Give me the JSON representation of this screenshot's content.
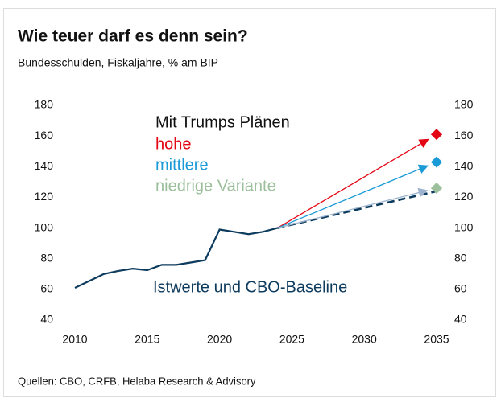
{
  "chart_data": {
    "type": "line",
    "title": "Wie teuer darf es denn sein?",
    "subtitle": "Bundesschulden, Fiskaljahre, % am BIP",
    "annotation": "Mit Trumps Plänen",
    "source": "Quellen: CBO, CRFB, Helaba Research & Advisory",
    "xlim": [
      2010,
      2035
    ],
    "xticks": [
      2010,
      2015,
      2020,
      2025,
      2030,
      2035
    ],
    "ylim": [
      40,
      180
    ],
    "yticks": [
      40,
      60,
      80,
      100,
      120,
      140,
      160,
      180
    ],
    "y2lim": [
      40,
      180
    ],
    "y2ticks": [
      40,
      60,
      80,
      100,
      120,
      140,
      160,
      180
    ],
    "series": [
      {
        "name": "Istwerte und CBO-Baseline",
        "color": "#0d3b5e",
        "x": [
          2010,
          2011,
          2012,
          2013,
          2014,
          2015,
          2016,
          2017,
          2018,
          2019,
          2020,
          2021,
          2022,
          2023,
          2024
        ],
        "values": [
          61,
          65.5,
          70,
          72,
          73.5,
          72.5,
          76,
          76,
          77.5,
          79,
          99,
          97.5,
          96,
          97.5,
          100
        ],
        "projection": {
          "x": [
            2024,
            2035
          ],
          "values": [
            100,
            124
          ]
        }
      },
      {
        "name": "hohe",
        "color": "#e30613",
        "marker_color": "#e30613",
        "x": [
          2024,
          2035
        ],
        "values": [
          100,
          161
        ]
      },
      {
        "name": "mittlere",
        "color": "#1a9ad6",
        "marker_color": "#1a9ad6",
        "x": [
          2024,
          2035
        ],
        "values": [
          100,
          143
        ]
      },
      {
        "name": "niedrige Variante",
        "color": "#9fb5cf",
        "marker_color": "#9cbf9c",
        "x": [
          2024,
          2035
        ],
        "values": [
          100,
          126
        ]
      }
    ]
  }
}
